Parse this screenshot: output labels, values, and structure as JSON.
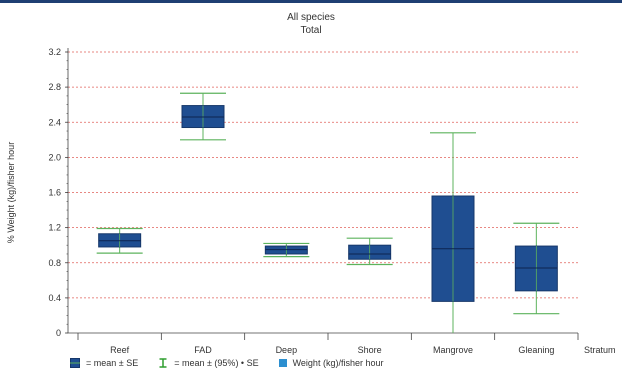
{
  "chart_data": {
    "type": "boxplot",
    "title": "All species",
    "subtitle": "Total",
    "ylabel": "% Weight (kg)/fisher hour",
    "xlabel": "Stratum",
    "ylim": [
      0,
      3.2
    ],
    "yticks": [
      "0",
      "0.4",
      "0.8",
      "1.2",
      "1.6",
      "2.0",
      "2.4",
      "2.8",
      "3.2"
    ],
    "ytick_values": [
      0,
      0.4,
      0.8,
      1.2,
      1.6,
      2.0,
      2.4,
      2.8,
      3.2
    ],
    "categories": [
      "Reef",
      "FAD",
      "Deep",
      "Shore",
      "Mangrove",
      "Gleaning"
    ],
    "series": [
      {
        "name": "Weight (kg)/fisher hour",
        "values": [
          {
            "mean": 1.05,
            "se_low": 0.98,
            "se_high": 1.13,
            "ci_low": 0.91,
            "ci_high": 1.19
          },
          {
            "mean": 2.46,
            "se_low": 2.34,
            "se_high": 2.59,
            "ci_low": 2.2,
            "ci_high": 2.73
          },
          {
            "mean": 0.95,
            "se_low": 0.9,
            "se_high": 0.99,
            "ci_low": 0.87,
            "ci_high": 1.02
          },
          {
            "mean": 0.9,
            "se_low": 0.84,
            "se_high": 1.0,
            "ci_low": 0.78,
            "ci_high": 1.08
          },
          {
            "mean": 0.96,
            "se_low": 0.36,
            "se_high": 1.56,
            "ci_low": 0.0,
            "ci_high": 2.28
          },
          {
            "mean": 0.74,
            "se_low": 0.48,
            "se_high": 0.99,
            "ci_low": 0.22,
            "ci_high": 1.25
          }
        ]
      }
    ],
    "grid": "horizontal dotted red",
    "legend_position": "bottom",
    "colors": {
      "box": "#1f4e91",
      "box_edge": "#16376a",
      "whisker": "#5db35d",
      "grid": "#e0605a",
      "axis": "#444444"
    }
  },
  "legend": [
    {
      "icon": "box-icon",
      "label": "= mean ± SE"
    },
    {
      "icon": "whisker-icon",
      "label": "= mean ± (95%) • SE"
    },
    {
      "icon": "square-icon",
      "label": "Weight (kg)/fisher hour"
    }
  ]
}
